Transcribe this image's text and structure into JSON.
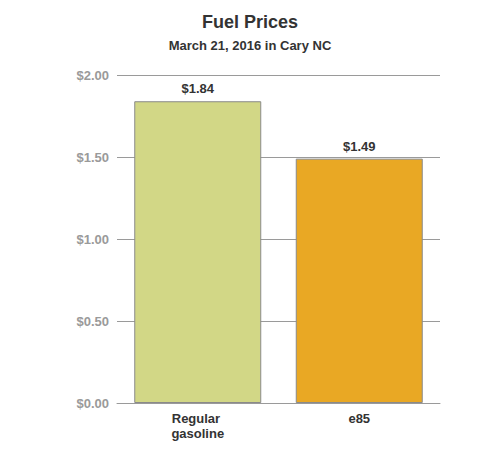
{
  "chart_data": {
    "type": "bar",
    "title": "Fuel Prices",
    "subtitle": "March 21, 2016 in Cary NC",
    "categories": [
      "Regular gasoline",
      "e85"
    ],
    "values": [
      1.84,
      1.49
    ],
    "value_labels": [
      "$1.84",
      "$1.49"
    ],
    "colors": [
      "#d2d786",
      "#e9a824"
    ],
    "ylim": [
      0,
      2
    ],
    "yticks": [
      {
        "value": 0,
        "label": "$0.00"
      },
      {
        "value": 0.5,
        "label": "$0.50"
      },
      {
        "value": 1,
        "label": "$1.00"
      },
      {
        "value": 1.5,
        "label": "$1.50"
      },
      {
        "value": 2,
        "label": "$2.00"
      }
    ],
    "grid": true,
    "data_labels": true
  }
}
